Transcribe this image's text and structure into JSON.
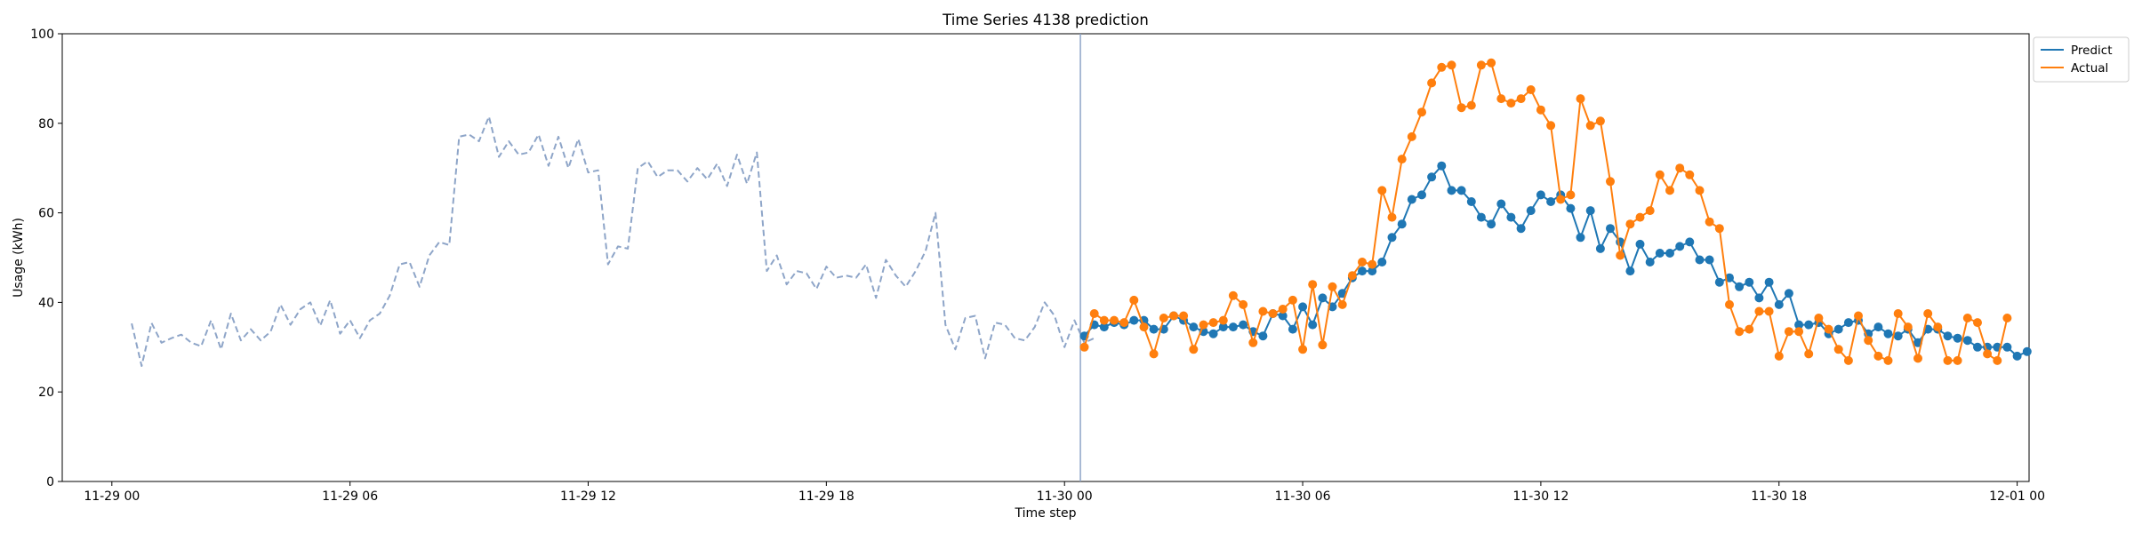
{
  "chart_data": {
    "type": "line",
    "title": "Time Series 4138 prediction",
    "xlabel": "Time step",
    "ylabel": "Usage (kWh)",
    "ylim": [
      0,
      100
    ],
    "yticks": [
      0,
      20,
      40,
      60,
      80,
      100
    ],
    "x_range_hours": [
      -1.25,
      48.3
    ],
    "xticks": [
      {
        "hour": 0,
        "label": "11-29 00"
      },
      {
        "hour": 6,
        "label": "11-29 06"
      },
      {
        "hour": 12,
        "label": "11-29 12"
      },
      {
        "hour": 18,
        "label": "11-29 18"
      },
      {
        "hour": 24,
        "label": "11-30 00"
      },
      {
        "hour": 30,
        "label": "11-30 06"
      },
      {
        "hour": 36,
        "label": "11-30 12"
      },
      {
        "hour": 42,
        "label": "11-30 18"
      },
      {
        "hour": 48,
        "label": "12-01 00"
      }
    ],
    "forecast_start_hour": 24.4,
    "step_hours": 0.25,
    "grid": false,
    "legend_position": "outside-top-right",
    "series": [
      {
        "name": "",
        "role": "history",
        "style": "dashed",
        "color": "#8ea5c8",
        "start_hour": 0.5,
        "values": [
          35.3,
          25.8,
          35.4,
          31.0,
          32.0,
          32.8,
          31.0,
          30.2,
          36.0,
          29.5,
          37.5,
          31.5,
          34.0,
          31.5,
          33.5,
          39.5,
          35.0,
          38.5,
          40.0,
          34.8,
          40.5,
          33.0,
          36.0,
          32.0,
          36.0,
          37.5,
          41.5,
          48.5,
          49.0,
          43.5,
          50.5,
          53.5,
          52.8,
          77.0,
          77.5,
          76.0,
          81.5,
          72.5,
          76.0,
          73.0,
          73.5,
          77.5,
          70.5,
          77.0,
          70.0,
          76.5,
          69.0,
          69.5,
          48.5,
          52.5,
          52.0,
          70.0,
          71.5,
          68.0,
          69.5,
          69.5,
          67.0,
          70.0,
          67.5,
          71.0,
          66.0,
          73.0,
          66.5,
          73.5,
          47.0,
          50.5,
          44.0,
          47.0,
          46.5,
          43.0,
          48.0,
          45.5,
          46.0,
          45.5,
          48.5,
          41.0,
          49.5,
          46.0,
          43.5,
          47.0,
          51.5,
          60.0,
          35.0,
          29.5,
          36.5,
          37.0,
          27.5,
          35.5,
          35.0,
          32.0,
          31.5,
          34.5,
          40.0,
          37.0,
          30.0,
          36.0,
          31.0,
          32.0
        ]
      },
      {
        "name": "Predict",
        "role": "prediction",
        "color": "#1f77b4",
        "start_hour": 24.5,
        "values": [
          32.5,
          35.0,
          34.5,
          35.5,
          35.0,
          36.0,
          36.0,
          34.0,
          34.0,
          37.0,
          36.0,
          34.5,
          33.5,
          33.0,
          34.5,
          34.5,
          35.0,
          33.5,
          32.5,
          37.5,
          37.0,
          34.0,
          39.0,
          35.0,
          41.0,
          39.0,
          42.0,
          45.5,
          47.0,
          47.0,
          49.0,
          54.5,
          57.5,
          63.0,
          64.0,
          68.0,
          70.5,
          65.0,
          65.0,
          62.5,
          59.0,
          57.5,
          62.0,
          59.0,
          56.5,
          60.5,
          64.0,
          62.5,
          64.0,
          61.0,
          54.5,
          60.5,
          52.0,
          56.5,
          53.5,
          47.0,
          53.0,
          49.0,
          51.0,
          51.0,
          52.5,
          53.5,
          49.5,
          49.5,
          44.5,
          45.5,
          43.5,
          44.5,
          41.0,
          44.5,
          39.5,
          42.0,
          35.0,
          35.0,
          35.5,
          33.0,
          34.0,
          35.5,
          36.0,
          33.0,
          34.5,
          33.0,
          32.5,
          34.0,
          31.0,
          34.0,
          34.0,
          32.5,
          32.0,
          31.5,
          30.0,
          30.0,
          30.0,
          30.0,
          28.0,
          29.0
        ]
      },
      {
        "name": "Actual",
        "role": "actual",
        "color": "#ff7f0e",
        "start_hour": 24.5,
        "values": [
          30.0,
          37.5,
          36.0,
          36.0,
          35.5,
          40.5,
          34.5,
          28.5,
          36.5,
          37.0,
          37.0,
          29.5,
          35.0,
          35.5,
          36.0,
          41.5,
          39.5,
          31.0,
          38.0,
          37.5,
          38.5,
          40.5,
          29.5,
          44.0,
          30.5,
          43.5,
          39.5,
          46.0,
          49.0,
          48.5,
          65.0,
          59.0,
          72.0,
          77.0,
          82.5,
          89.0,
          92.5,
          93.0,
          83.5,
          84.0,
          93.0,
          93.5,
          85.5,
          84.5,
          85.5,
          87.5,
          83.0,
          79.5,
          63.0,
          64.0,
          85.5,
          79.5,
          80.5,
          67.0,
          50.5,
          57.5,
          59.0,
          60.5,
          68.5,
          65.0,
          70.0,
          68.5,
          65.0,
          58.0,
          56.5,
          39.5,
          33.5,
          34.0,
          38.0,
          38.0,
          28.0,
          33.5,
          33.5,
          28.5,
          36.5,
          34.0,
          29.5,
          27.0,
          37.0,
          31.5,
          28.0,
          27.0,
          37.5,
          34.5,
          27.5,
          37.5,
          34.5,
          27.0,
          27.0,
          36.5,
          35.5,
          28.5,
          27.0,
          36.5
        ]
      }
    ]
  }
}
